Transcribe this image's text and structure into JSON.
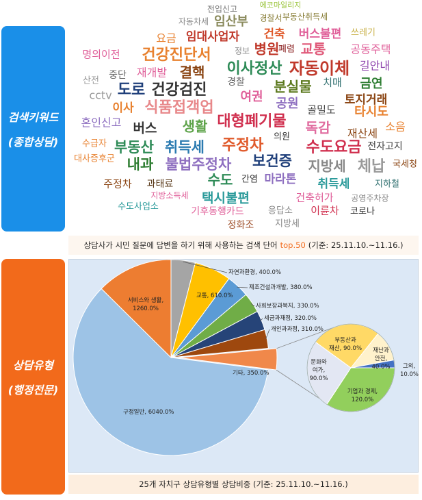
{
  "keyword_panel": {
    "label": [
      "검색키워드",
      "(종합상담)"
    ],
    "words": [
      "전입신고",
      "에코마일리지",
      "자동차세",
      "임산부",
      "경찰서",
      "부동산취득세",
      "요금",
      "임대사업자",
      "건축",
      "버스불편",
      "쓰레기",
      "명의이전",
      "건강진단서",
      "정보",
      "병원",
      "폐렴",
      "교통",
      "공동주택",
      "산전",
      "중단",
      "재개발",
      "결핵",
      "이사정산",
      "자동이체",
      "길안내",
      "cctv",
      "도로",
      "건강검진",
      "경찰",
      "분실물",
      "치매",
      "금연",
      "여권",
      "공원",
      "토지거래",
      "이사",
      "식품접객업",
      "골밀도",
      "타시도",
      "혼인신고",
      "대형폐기물",
      "버스",
      "생활",
      "독감",
      "소음",
      "재산세",
      "수급자",
      "부동산",
      "취득세",
      "주정차",
      "수도요금",
      "전자고지",
      "대사증후군",
      "내과",
      "불법주정차",
      "보건증",
      "지방세",
      "체납",
      "국세청",
      "주정차",
      "과태료",
      "수도",
      "간염",
      "마라톤",
      "취득세",
      "지하철",
      "지방소득세",
      "택시불편",
      "건축허가",
      "공영주차장",
      "수도사업소",
      "기후동행카드",
      "응답소",
      "이륜차",
      "코로나",
      "정화조",
      "지방세",
      "의원"
    ],
    "caption": {
      "text": "상담사가 시민 질문에 답변을 하기 위해 사용하는 검색 단어",
      "highlight": "top.50",
      "period": "(기준: 25.11.10.~11.16.)"
    }
  },
  "type_panel": {
    "label": [
      "상담유형",
      "(행정전문)"
    ]
  },
  "chart_data": {
    "type": "pie",
    "title": "25개 자치구 상담유형별 상담비중 (기준: 25.11.10.~11.16.)",
    "label_separator": ", ",
    "categories": [
      "자연과환경",
      "교통",
      "제조건설과개발",
      "사회보장과복지",
      "세금과재정",
      "개인과과정",
      "기타",
      "구정일반",
      "서비스와 생활"
    ],
    "values": [
      400,
      610,
      380,
      330,
      320,
      310,
      350,
      6040,
      1260
    ],
    "value_labels": [
      "400.0%",
      "610.0%",
      "380.0%",
      "330.0%",
      "320.0%",
      "310.0%",
      "350.0%",
      "6040.0%",
      "1260.0%"
    ],
    "colors": [
      "#a5a5a5",
      "#ffc000",
      "#5b9bd5",
      "#70ad47",
      "#264478",
      "#9e480e",
      "#f0884a",
      "#9dc3e6",
      "#ed7d31"
    ],
    "breakdown": {
      "type": "pie",
      "categories": [
        "부동산과 재산",
        "재난과 안전",
        "그외",
        "기업과 경제",
        "문화와 여가"
      ],
      "values": [
        90,
        40,
        10,
        120,
        90
      ],
      "value_labels": [
        "90.0%",
        "40.0%",
        "10.0%",
        "120.0%",
        "90.0%"
      ],
      "colors": [
        "#ffd966",
        "#fff2cc",
        "#4472c4",
        "#92cf5c",
        "#e3e7f3"
      ]
    }
  }
}
